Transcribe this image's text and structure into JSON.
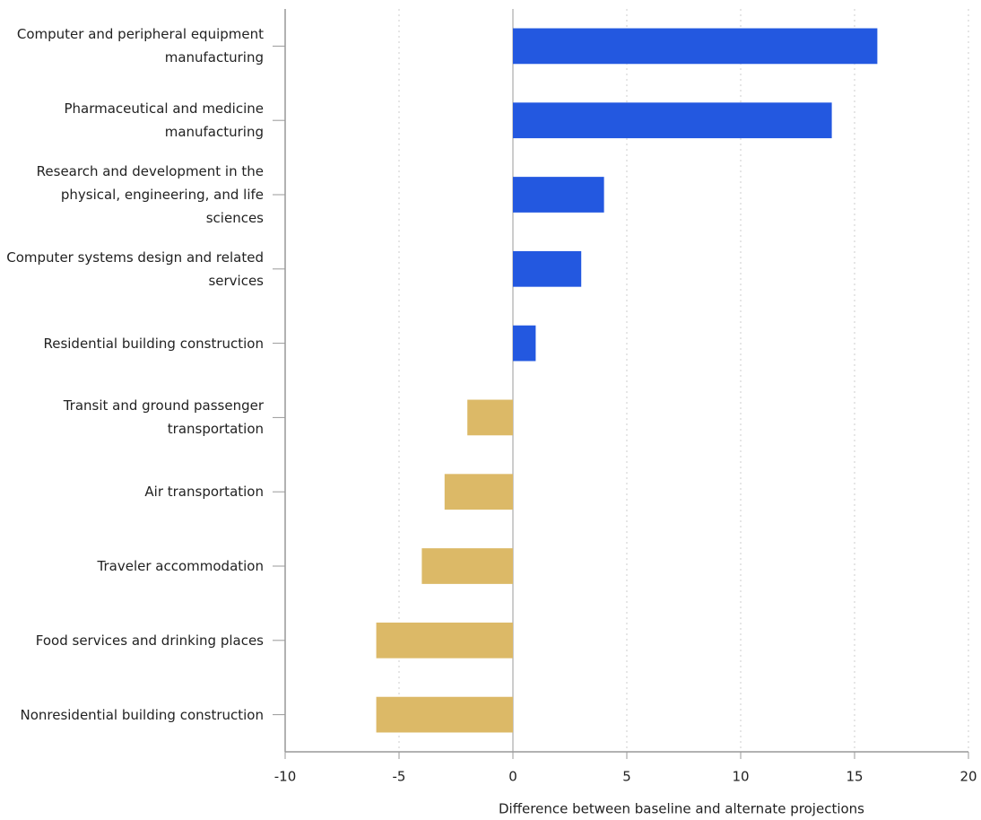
{
  "chart_data": {
    "type": "barh",
    "categories": [
      "Computer and peripheral equipment manufacturing",
      "Pharmaceutical and medicine manufacturing",
      "Research and development in the physical, engineering, and life sciences",
      "Computer systems design and related services",
      "Residential building construction",
      "Transit and ground passenger transportation",
      "Air transportation",
      "Traveler accommodation",
      "Food services and drinking places",
      "Nonresidential building construction"
    ],
    "values": [
      16,
      14,
      4,
      3,
      1,
      -2,
      -3,
      -4,
      -6,
      -6
    ],
    "colors": [
      "#2358e0",
      "#2358e0",
      "#2358e0",
      "#2358e0",
      "#2358e0",
      "#dcb967",
      "#dcb967",
      "#dcb967",
      "#dcb967",
      "#dcb967"
    ],
    "xlim": [
      -10,
      20
    ],
    "xticks": [
      -10,
      -5,
      0,
      5,
      10,
      15,
      20
    ],
    "xlabel": "Difference between baseline and alternate projections",
    "grid": true
  }
}
